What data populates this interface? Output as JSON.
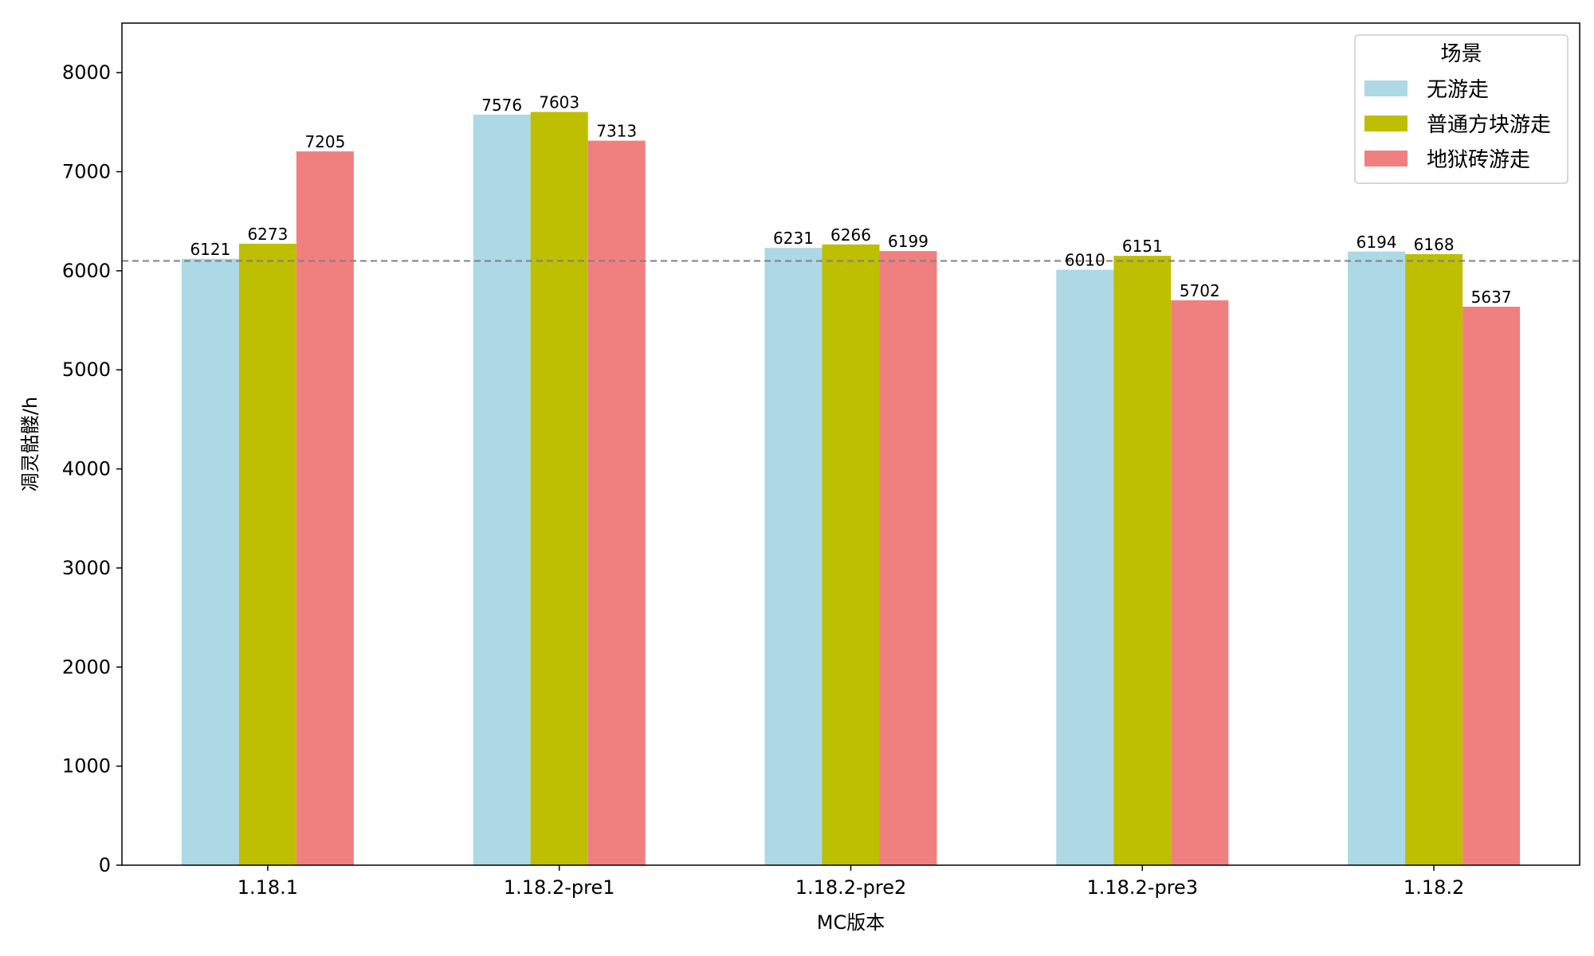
{
  "chart_data": {
    "type": "bar",
    "categories": [
      "1.18.1",
      "1.18.2-pre1",
      "1.18.2-pre2",
      "1.18.2-pre3",
      "1.18.2"
    ],
    "series": [
      {
        "name": "无游走",
        "color": "#add8e6",
        "values": [
          6121,
          7576,
          6231,
          6010,
          6194
        ]
      },
      {
        "name": "普通方块游走",
        "color": "#bdbf00",
        "values": [
          6273,
          7603,
          6266,
          6151,
          6168
        ]
      },
      {
        "name": "地狱砖游走",
        "color": "#f08080",
        "values": [
          7205,
          7313,
          6199,
          5702,
          5637
        ]
      }
    ],
    "xlabel": "MC版本",
    "ylabel": "凋灵骷髅/h",
    "ylim": [
      0,
      8500
    ],
    "yticks": [
      0,
      1000,
      2000,
      3000,
      4000,
      5000,
      6000,
      7000,
      8000
    ],
    "reference_line": {
      "value": 6100,
      "style": "dashed",
      "color": "#808080"
    },
    "legend": {
      "title": "场景",
      "placement": "top-right"
    }
  }
}
